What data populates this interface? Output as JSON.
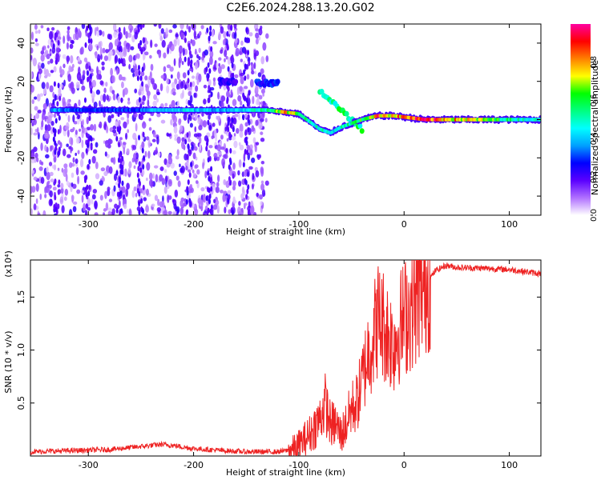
{
  "title": "C2E6.2024.288.13.20.G02",
  "colors": {
    "snr_line": "#ee2222",
    "axis": "#000000",
    "background": "#ffffff"
  },
  "chart_data": [
    {
      "type": "heatmap",
      "xlabel": "Height of straight line (km)",
      "ylabel": "Frequency (Hz)",
      "xlim": [
        -355,
        130
      ],
      "ylim": [
        -50,
        50
      ],
      "xticks": [
        -300,
        -200,
        -100,
        0,
        100
      ],
      "yticks": [
        -40,
        -20,
        0,
        20,
        40
      ],
      "colorbar": {
        "label": "Normalized spectral amplitude",
        "range": [
          0,
          1
        ],
        "ticks": [
          "0.0",
          "0.2",
          "0.4",
          "0.6",
          "0.8"
        ],
        "tick_values": [
          0.0,
          0.2,
          0.4,
          0.6,
          0.8
        ],
        "colormap": [
          "#ffffff",
          "#b070ff",
          "#5a00ff",
          "#0000ff",
          "#00a0ff",
          "#00ffff",
          "#00ff80",
          "#00ff00",
          "#ffff00",
          "#ff8000",
          "#ff0000",
          "#ff00a0"
        ]
      },
      "ridge_line": [
        {
          "x": -335,
          "f": 5,
          "amp": 0.38
        },
        {
          "x": -300,
          "f": 5,
          "amp": 0.3
        },
        {
          "x": -260,
          "f": 5,
          "amp": 0.3
        },
        {
          "x": -220,
          "f": 5,
          "amp": 0.45
        },
        {
          "x": -180,
          "f": 5,
          "amp": 0.4
        },
        {
          "x": -150,
          "f": 5,
          "amp": 0.45
        },
        {
          "x": -130,
          "f": 5,
          "amp": 0.55
        },
        {
          "x": -115,
          "f": 4,
          "amp": 0.8
        },
        {
          "x": -100,
          "f": 3,
          "amp": 0.65
        },
        {
          "x": -90,
          "f": -1,
          "amp": 0.5
        },
        {
          "x": -80,
          "f": -5,
          "amp": 0.5
        },
        {
          "x": -70,
          "f": -7,
          "amp": 0.45
        },
        {
          "x": -60,
          "f": -4,
          "amp": 0.5
        },
        {
          "x": -50,
          "f": -2,
          "amp": 0.55
        },
        {
          "x": -40,
          "f": 0,
          "amp": 0.6
        },
        {
          "x": -25,
          "f": 2,
          "amp": 0.85
        },
        {
          "x": -10,
          "f": 2,
          "amp": 0.8
        },
        {
          "x": 20,
          "f": 0,
          "amp": 0.9
        },
        {
          "x": 60,
          "f": 0,
          "amp": 0.75
        },
        {
          "x": 100,
          "f": 0,
          "amp": 0.55
        },
        {
          "x": 130,
          "f": 0,
          "amp": 0.45
        }
      ],
      "secondary_features": [
        {
          "x_start": -80,
          "x_end": -40,
          "f_start": 15,
          "f_end": -5,
          "amp": 0.6
        },
        {
          "x_start": -175,
          "x_end": -160,
          "f_start": 20,
          "f_end": 20,
          "amp": 0.25
        },
        {
          "x_start": -140,
          "x_end": -120,
          "f_start": 19,
          "f_end": 19,
          "amp": 0.3
        }
      ],
      "noise_region_x": [
        -355,
        -130
      ]
    },
    {
      "type": "line",
      "xlabel": "Height of straight line (km)",
      "ylabel": "SNR (10 * v/v)",
      "y_multiplier": "(x10⁴)",
      "xlim": [
        -355,
        130
      ],
      "ylim": [
        0,
        1.85
      ],
      "xticks": [
        -300,
        -200,
        -100,
        0,
        100
      ],
      "yticks": [
        0.5,
        1.0,
        1.5
      ],
      "ytick_labels": [
        "0.5",
        "1.0",
        "1.5"
      ],
      "series": [
        {
          "x": [
            -355,
            -320,
            -280,
            -250,
            -230,
            -220,
            -200,
            -170,
            -150,
            -120,
            -105,
            -100,
            -90,
            -80,
            -75,
            -70,
            -65,
            -60,
            -55,
            -50,
            -45,
            -40,
            -35,
            -30,
            -25,
            -20,
            -15,
            -10,
            -5,
            0,
            10,
            20,
            30,
            40,
            50,
            80,
            100,
            130
          ],
          "y": [
            0.04,
            0.05,
            0.06,
            0.09,
            0.11,
            0.1,
            0.07,
            0.05,
            0.04,
            0.04,
            0.06,
            0.1,
            0.2,
            0.35,
            0.5,
            0.3,
            0.3,
            0.2,
            0.3,
            0.45,
            0.5,
            0.7,
            0.95,
            1.1,
            1.3,
            1.25,
            1.15,
            1.05,
            1.2,
            1.3,
            1.45,
            1.62,
            1.75,
            1.8,
            1.78,
            1.77,
            1.76,
            1.72
          ]
        }
      ]
    }
  ]
}
